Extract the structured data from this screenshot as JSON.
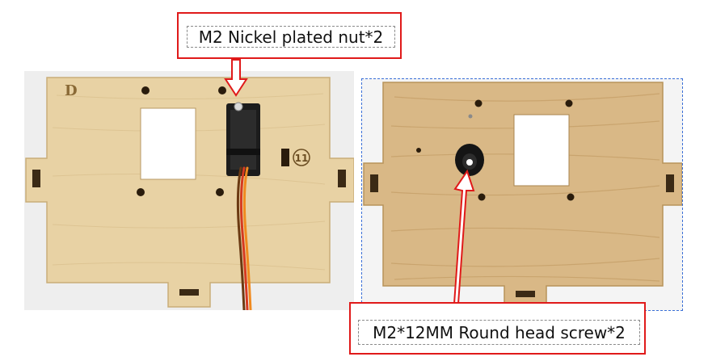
{
  "labels": {
    "nut": "M2 Nickel plated nut*2",
    "screw": "M2*12MM Round head screw*2"
  },
  "board_marks": {
    "panel_letter": "D",
    "part_number": "11"
  },
  "colors": {
    "callout_border": "#e01a1a",
    "wood": "#e8d2a4",
    "wood_dark": "#caa66a",
    "dashed_frame": "#3a6fd8"
  }
}
